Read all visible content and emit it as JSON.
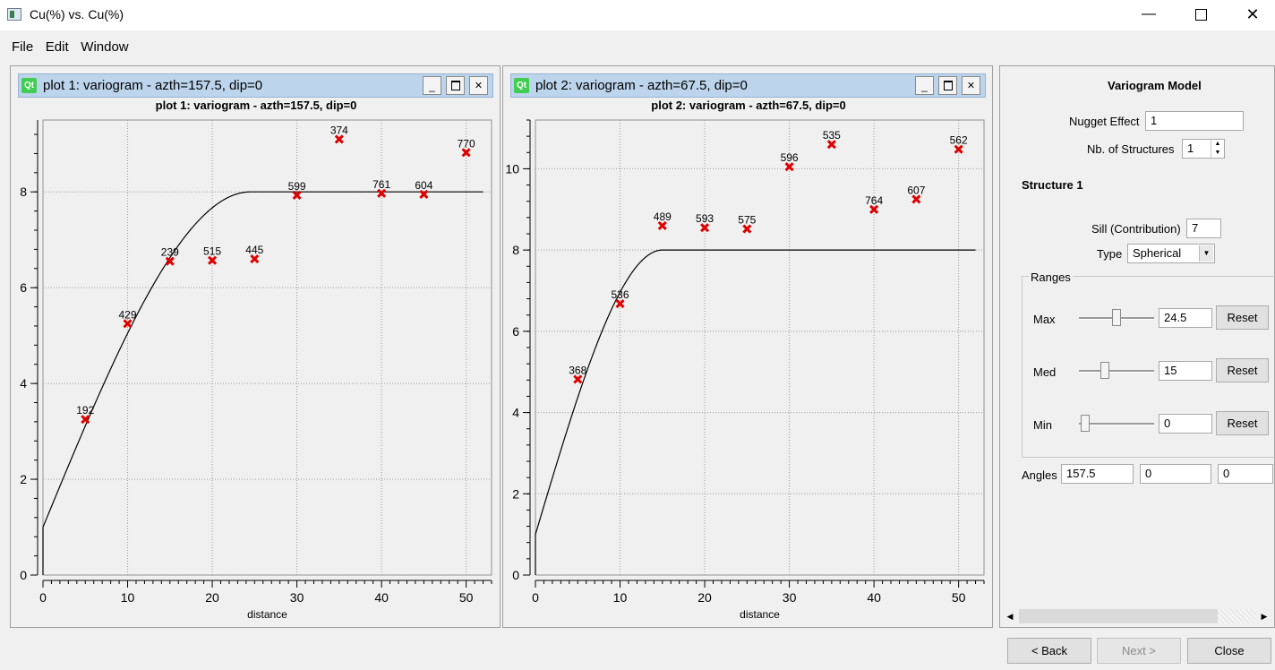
{
  "window": {
    "title": "Cu(%) vs. Cu(%)"
  },
  "menu": [
    "File",
    "Edit",
    "Window"
  ],
  "plots": [
    {
      "window_title": "plot 1:  variogram - azth=157.5, dip=0",
      "title": "plot 1:  variogram - azth=157.5, dip=0",
      "chart_data": {
        "type": "scatter",
        "xlabel": "distance",
        "ylabel": "",
        "xlim": [
          0,
          53
        ],
        "ylim": [
          0,
          9.5
        ],
        "xticks": [
          0,
          10,
          20,
          30,
          40,
          50
        ],
        "yticks": [
          0,
          2,
          4,
          6,
          8
        ],
        "grid": true,
        "points": [
          {
            "x": 5,
            "y": 3.25,
            "label": "192"
          },
          {
            "x": 10,
            "y": 5.25,
            "label": "429"
          },
          {
            "x": 15,
            "y": 6.55,
            "label": "239"
          },
          {
            "x": 20,
            "y": 6.57,
            "label": "515"
          },
          {
            "x": 25,
            "y": 6.6,
            "label": "445"
          },
          {
            "x": 30,
            "y": 7.93,
            "label": "599"
          },
          {
            "x": 35,
            "y": 9.1,
            "label": "374"
          },
          {
            "x": 40,
            "y": 7.97,
            "label": "761"
          },
          {
            "x": 45,
            "y": 7.95,
            "label": "604"
          },
          {
            "x": 50,
            "y": 8.82,
            "label": "770"
          }
        ],
        "model": {
          "nugget": 1,
          "sill": 7,
          "range": 24.5,
          "type": "spherical"
        },
        "point_color": "#e00000",
        "line_color": "#000000"
      }
    },
    {
      "window_title": "plot 2:  variogram - azth=67.5, dip=0",
      "title": "plot 2:  variogram - azth=67.5, dip=0",
      "chart_data": {
        "type": "scatter",
        "xlabel": "distance",
        "ylabel": "",
        "xlim": [
          0,
          53
        ],
        "ylim": [
          0,
          11.2
        ],
        "xticks": [
          0,
          10,
          20,
          30,
          40,
          50
        ],
        "yticks": [
          0,
          2,
          4,
          6,
          8,
          10
        ],
        "grid": true,
        "points": [
          {
            "x": 5,
            "y": 4.82,
            "label": "368"
          },
          {
            "x": 10,
            "y": 6.68,
            "label": "536"
          },
          {
            "x": 15,
            "y": 8.6,
            "label": "489"
          },
          {
            "x": 20,
            "y": 8.55,
            "label": "593"
          },
          {
            "x": 25,
            "y": 8.52,
            "label": "575"
          },
          {
            "x": 30,
            "y": 10.05,
            "label": "596"
          },
          {
            "x": 35,
            "y": 10.6,
            "label": "535"
          },
          {
            "x": 40,
            "y": 9.0,
            "label": "764"
          },
          {
            "x": 45,
            "y": 9.25,
            "label": "607"
          },
          {
            "x": 50,
            "y": 10.48,
            "label": "562"
          }
        ],
        "model": {
          "nugget": 1,
          "sill": 7,
          "range": 15,
          "type": "spherical"
        },
        "point_color": "#e00000",
        "line_color": "#000000"
      }
    }
  ],
  "panel": {
    "heading": "Variogram Model",
    "nugget_label": "Nugget Effect",
    "nugget_value": "1",
    "nb_label": "Nb. of Structures",
    "nb_value": "1",
    "structure_label": "Structure 1",
    "sill_label": "Sill (Contribution)",
    "sill_value": "7",
    "type_label": "Type",
    "type_value": "Spherical",
    "ranges_label": "Ranges",
    "ranges": [
      {
        "label": "Max",
        "value": "24.5",
        "slider": 0.5,
        "reset": "Reset"
      },
      {
        "label": "Med",
        "value": "15",
        "slider": 0.33,
        "reset": "Reset"
      },
      {
        "label": "Min",
        "value": "0",
        "slider": 0.0,
        "reset": "Reset"
      }
    ],
    "angles_label": "Angles",
    "angles": [
      "157.5",
      "0",
      "0"
    ]
  },
  "buttons": {
    "back": "< Back",
    "next": "Next >",
    "close": "Close"
  }
}
